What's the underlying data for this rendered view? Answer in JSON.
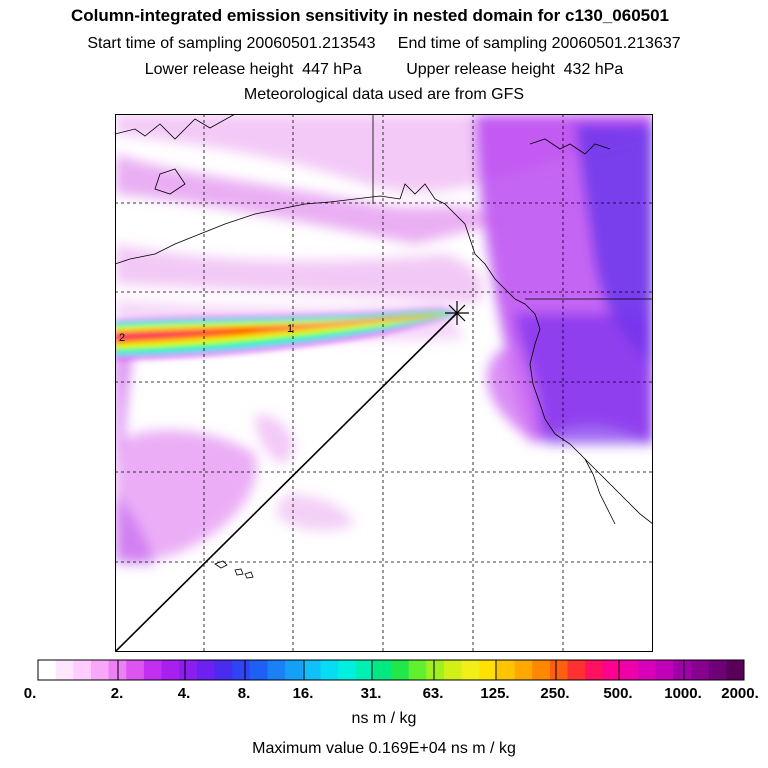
{
  "header": {
    "title": "Column-integrated emission sensitivity in nested domain for c130_060501",
    "sampling_line": "Start time of sampling 20060501.213543     End time of sampling 20060501.213637",
    "release_line": "Lower release height  447 hPa          Upper release height  432 hPa",
    "met_line": "Meteorological data used are from GFS"
  },
  "map": {
    "plume_labels": [
      "2",
      "1"
    ],
    "release_marker": "release-point-star"
  },
  "colorbar": {
    "tick_labels": [
      "0.",
      "2.",
      "4.",
      "8.",
      "16.",
      "31.",
      "63.",
      "125.",
      "250.",
      "500.",
      "1000.",
      "2000."
    ],
    "colors": [
      "#ffffff",
      "#ffe6ff",
      "#ffccff",
      "#f9a8f9",
      "#ee80f5",
      "#dd55f0",
      "#c22ff0",
      "#a820ee",
      "#8a1ff0",
      "#6e20f0",
      "#4a2cf0",
      "#2f44f2",
      "#1e60f4",
      "#1a80f6",
      "#15a0f8",
      "#10c0fa",
      "#08dcf4",
      "#00f0e0",
      "#00f0b4",
      "#00e880",
      "#20e84a",
      "#60f030",
      "#a0f020",
      "#d0f018",
      "#f0f018",
      "#ffe000",
      "#ffc400",
      "#ffa800",
      "#ff8800",
      "#ff6010",
      "#ff3030",
      "#ff1060",
      "#ff0090",
      "#f000a8",
      "#d800b8",
      "#c000b8",
      "#a000a8",
      "#880090",
      "#700078",
      "#5a005a"
    ],
    "units": "ns m / kg"
  },
  "footer": {
    "max_value": "Maximum value  0.169E+04 ns m / kg"
  }
}
